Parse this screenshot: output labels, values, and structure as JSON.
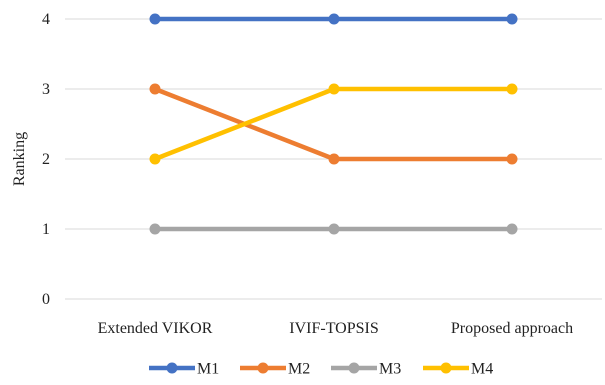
{
  "chart_data": {
    "type": "line",
    "categories": [
      "Extended VIKOR",
      "IVIF-TOPSIS",
      "Proposed approach"
    ],
    "series": [
      {
        "name": "M1",
        "values": [
          4,
          4,
          4
        ],
        "color": "#4472C4"
      },
      {
        "name": "M2",
        "values": [
          3,
          2,
          2
        ],
        "color": "#ED7D31"
      },
      {
        "name": "M3",
        "values": [
          1,
          1,
          1
        ],
        "color": "#A5A5A5"
      },
      {
        "name": "M4",
        "values": [
          2,
          3,
          3
        ],
        "color": "#FFC000"
      }
    ],
    "ylabel": "Ranking",
    "xlabel": "",
    "ylim": [
      0,
      4
    ],
    "yticks": [
      "0",
      "1",
      "2",
      "3",
      "4"
    ],
    "grid": true,
    "legend_position": "bottom",
    "marker": "circle"
  }
}
